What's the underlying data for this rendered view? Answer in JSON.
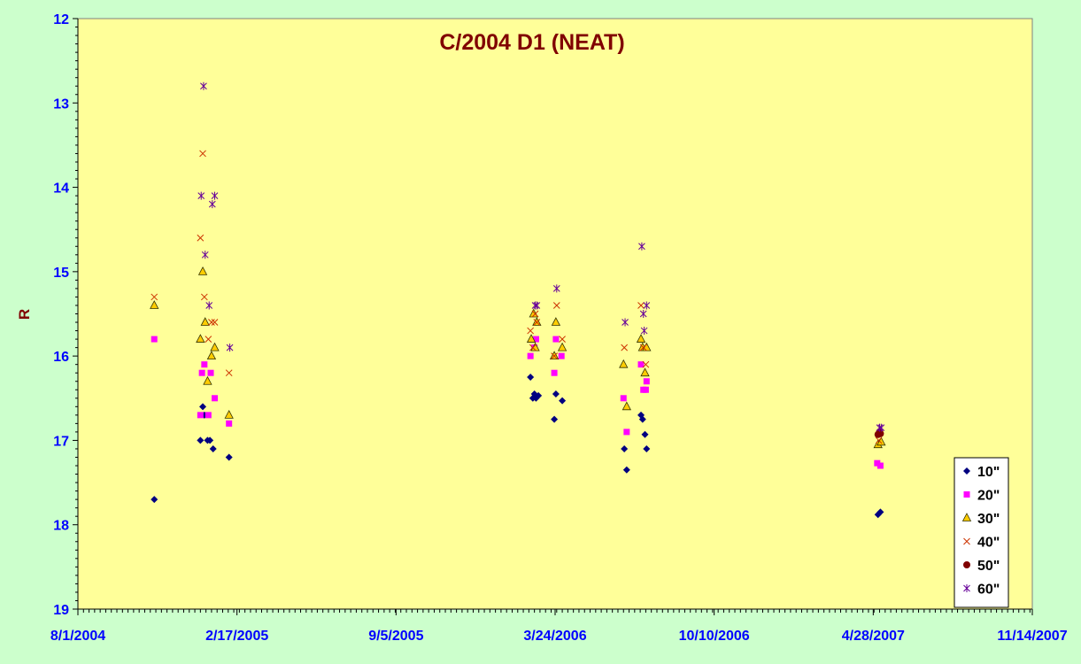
{
  "chart_data": {
    "type": "scatter",
    "title": "C/2004 D1 (NEAT)",
    "xlabel": "",
    "ylabel": "R",
    "x_type": "date",
    "xlim": [
      "2004-08-01",
      "2007-11-14"
    ],
    "ylim": [
      12,
      19
    ],
    "y_inverted": true,
    "x_ticks": [
      "8/1/2004",
      "2/17/2005",
      "9/5/2005",
      "3/24/2006",
      "10/10/2006",
      "4/28/2007",
      "11/14/2007"
    ],
    "y_ticks": [
      12,
      13,
      14,
      15,
      16,
      17,
      18,
      19
    ],
    "grid": false,
    "legend_position": "bottom-right",
    "plot_background": "#ffff99",
    "series": [
      {
        "name": "10\"",
        "marker": "diamond",
        "color": "#000080",
        "points": [
          [
            "2004-11-05",
            17.7
          ],
          [
            "2005-01-02",
            17.0
          ],
          [
            "2005-01-05",
            16.6
          ],
          [
            "2005-01-07",
            16.7
          ],
          [
            "2005-01-11",
            17.0
          ],
          [
            "2005-01-14",
            17.0
          ],
          [
            "2005-01-18",
            17.1
          ],
          [
            "2005-02-07",
            17.2
          ],
          [
            "2006-02-21",
            16.25
          ],
          [
            "2006-02-24",
            16.5
          ],
          [
            "2006-02-26",
            16.45
          ],
          [
            "2006-02-28",
            16.5
          ],
          [
            "2006-03-03",
            16.47
          ],
          [
            "2006-03-23",
            16.75
          ],
          [
            "2006-03-25",
            16.45
          ],
          [
            "2006-04-02",
            16.53
          ],
          [
            "2006-06-19",
            17.1
          ],
          [
            "2006-06-22",
            17.35
          ],
          [
            "2006-07-10",
            16.7
          ],
          [
            "2006-07-12",
            16.75
          ],
          [
            "2006-07-15",
            16.93
          ],
          [
            "2006-07-17",
            17.1
          ],
          [
            "2007-05-04",
            17.88
          ],
          [
            "2007-05-07",
            17.85
          ]
        ]
      },
      {
        "name": "20\"",
        "marker": "square",
        "color": "#ff00ff",
        "points": [
          [
            "2004-11-05",
            15.8
          ],
          [
            "2005-01-02",
            16.7
          ],
          [
            "2005-01-04",
            16.2
          ],
          [
            "2005-01-07",
            16.1
          ],
          [
            "2005-01-12",
            16.7
          ],
          [
            "2005-01-15",
            16.2
          ],
          [
            "2005-01-20",
            16.5
          ],
          [
            "2005-02-07",
            16.8
          ],
          [
            "2006-02-21",
            16.0
          ],
          [
            "2006-02-26",
            15.9
          ],
          [
            "2006-02-28",
            15.8
          ],
          [
            "2006-03-23",
            16.2
          ],
          [
            "2006-03-25",
            15.8
          ],
          [
            "2006-04-01",
            16.0
          ],
          [
            "2006-06-18",
            16.5
          ],
          [
            "2006-06-22",
            16.9
          ],
          [
            "2006-07-10",
            16.1
          ],
          [
            "2006-07-13",
            16.4
          ],
          [
            "2006-07-16",
            16.4
          ],
          [
            "2006-07-17",
            16.3
          ],
          [
            "2007-05-03",
            17.27
          ],
          [
            "2007-05-07",
            17.3
          ]
        ]
      },
      {
        "name": "30\"",
        "marker": "triangle",
        "color": "#ffcc00",
        "points": [
          [
            "2004-11-05",
            15.4
          ],
          [
            "2005-01-02",
            15.8
          ],
          [
            "2005-01-05",
            15.0
          ],
          [
            "2005-01-08",
            15.6
          ],
          [
            "2005-01-11",
            16.3
          ],
          [
            "2005-01-16",
            16.0
          ],
          [
            "2005-01-20",
            15.9
          ],
          [
            "2005-02-07",
            16.7
          ],
          [
            "2006-02-22",
            15.8
          ],
          [
            "2006-02-25",
            15.5
          ],
          [
            "2006-02-27",
            15.9
          ],
          [
            "2006-03-01",
            15.6
          ],
          [
            "2006-03-23",
            16.0
          ],
          [
            "2006-03-25",
            15.6
          ],
          [
            "2006-04-02",
            15.9
          ],
          [
            "2006-06-18",
            16.1
          ],
          [
            "2006-06-22",
            16.6
          ],
          [
            "2006-07-10",
            15.8
          ],
          [
            "2006-07-12",
            15.9
          ],
          [
            "2006-07-15",
            16.2
          ],
          [
            "2006-07-17",
            15.9
          ],
          [
            "2007-05-04",
            17.05
          ],
          [
            "2007-05-08",
            17.02
          ]
        ]
      },
      {
        "name": "40\"",
        "marker": "x",
        "color": "#cc3300",
        "points": [
          [
            "2004-11-05",
            15.3
          ],
          [
            "2005-01-02",
            14.6
          ],
          [
            "2005-01-05",
            13.6
          ],
          [
            "2005-01-07",
            15.3
          ],
          [
            "2005-01-12",
            15.8
          ],
          [
            "2005-01-16",
            15.6
          ],
          [
            "2005-01-20",
            15.6
          ],
          [
            "2005-02-07",
            16.2
          ],
          [
            "2006-02-21",
            15.7
          ],
          [
            "2006-02-24",
            15.9
          ],
          [
            "2006-02-27",
            15.5
          ],
          [
            "2006-03-01",
            15.6
          ],
          [
            "2006-03-23",
            16.0
          ],
          [
            "2006-03-26",
            15.4
          ],
          [
            "2006-04-02",
            15.8
          ],
          [
            "2006-06-19",
            15.9
          ],
          [
            "2006-07-10",
            15.4
          ],
          [
            "2006-07-13",
            15.9
          ],
          [
            "2006-07-16",
            16.1
          ],
          [
            "2007-05-05",
            17.0
          ]
        ]
      },
      {
        "name": "50\"",
        "marker": "circle",
        "color": "#800000",
        "points": [
          [
            "2007-05-04",
            16.93
          ],
          [
            "2007-05-06",
            16.9
          ],
          [
            "2007-05-07",
            16.92
          ]
        ]
      },
      {
        "name": "60\"",
        "marker": "star",
        "color": "#660099",
        "points": [
          [
            "2005-01-03",
            14.1
          ],
          [
            "2005-01-06",
            12.8
          ],
          [
            "2005-01-08",
            14.8
          ],
          [
            "2005-01-13",
            15.4
          ],
          [
            "2005-01-17",
            14.2
          ],
          [
            "2005-01-20",
            14.1
          ],
          [
            "2005-02-08",
            15.9
          ],
          [
            "2006-02-27",
            15.4
          ],
          [
            "2006-03-01",
            15.4
          ],
          [
            "2006-03-26",
            15.2
          ],
          [
            "2006-06-20",
            15.6
          ],
          [
            "2006-07-11",
            14.7
          ],
          [
            "2006-07-13",
            15.5
          ],
          [
            "2006-07-14",
            15.7
          ],
          [
            "2006-07-17",
            15.4
          ],
          [
            "2007-05-06",
            16.85
          ],
          [
            "2007-05-08",
            16.85
          ]
        ]
      }
    ]
  }
}
